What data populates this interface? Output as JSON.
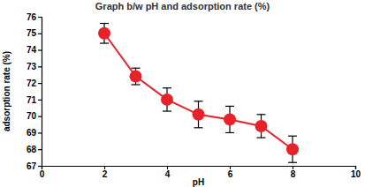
{
  "chart_data": {
    "type": "line",
    "title": "Graph b/w pH and adsorption rate (%)",
    "x_label": "pH",
    "y_label": "adsorption rate (%)",
    "x": [
      2,
      3,
      4,
      5,
      6,
      7,
      8
    ],
    "values": [
      75.0,
      72.4,
      71.0,
      70.1,
      69.8,
      69.4,
      68.0
    ],
    "errors": [
      0.6,
      0.5,
      0.7,
      0.8,
      0.8,
      0.7,
      0.8
    ],
    "color": "#e8222a",
    "marker": "circle",
    "xlim": [
      0,
      10
    ],
    "xticks": [
      0,
      2,
      4,
      6,
      8,
      10
    ],
    "ylim": [
      67,
      76
    ],
    "yticks": [
      67,
      68,
      69,
      70,
      71,
      72,
      73,
      74,
      75,
      76
    ],
    "grid": false
  }
}
